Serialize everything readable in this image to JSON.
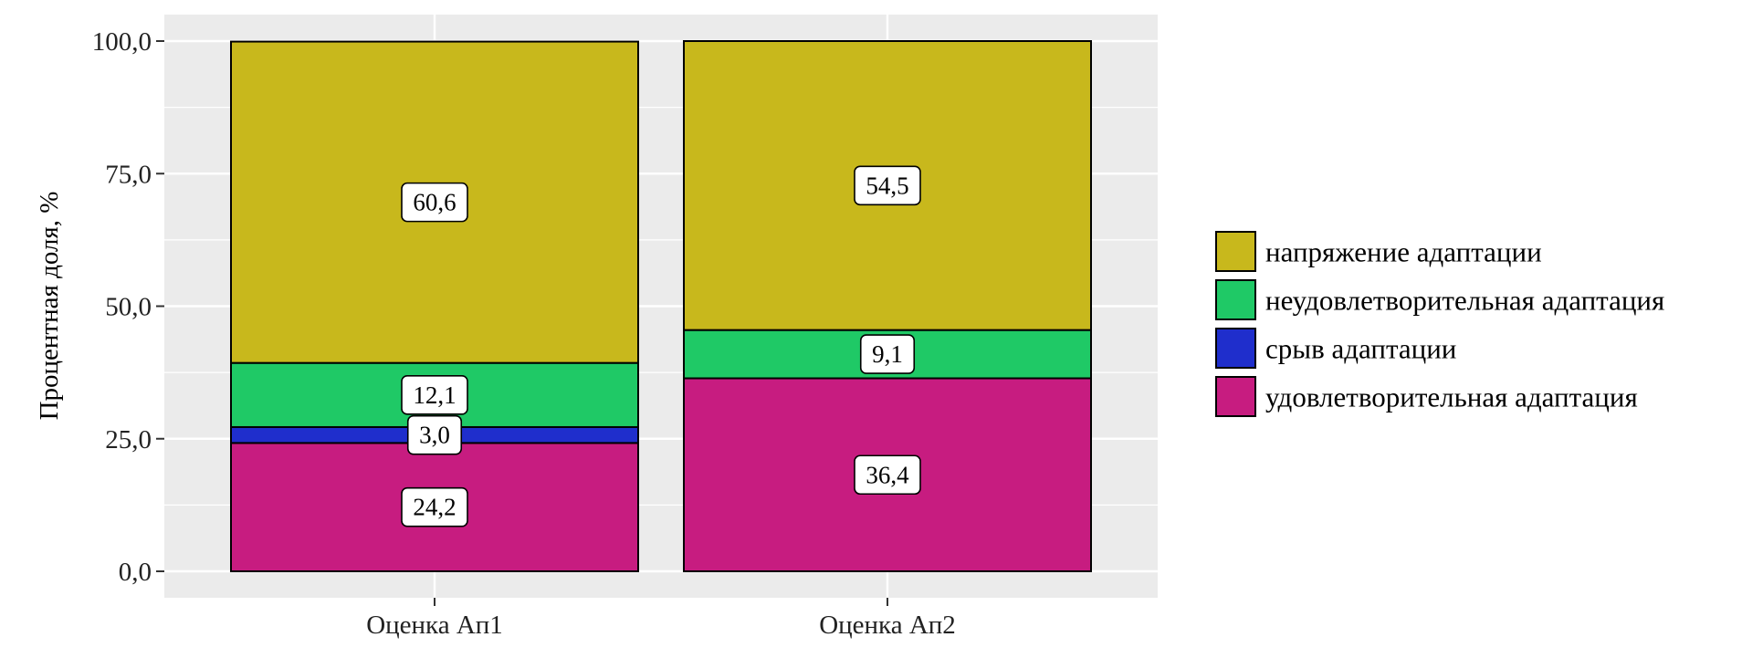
{
  "chart_data": {
    "type": "bar",
    "stacked": true,
    "categories": [
      "Оценка Ап1",
      "Оценка Ап2"
    ],
    "series": [
      {
        "name": "удовлетворительная адаптация",
        "color": "#C71C80",
        "values": [
          24.2,
          36.4
        ],
        "labels": [
          "24,2",
          "36,4"
        ]
      },
      {
        "name": "срыв адаптации",
        "color": "#1F2ECC",
        "values": [
          3.0,
          0
        ],
        "labels": [
          "3,0",
          ""
        ]
      },
      {
        "name": "неудовлетворительная адаптация",
        "color": "#1FC966",
        "values": [
          12.1,
          9.1
        ],
        "labels": [
          "12,1",
          "9,1"
        ]
      },
      {
        "name": "напряжение адаптации",
        "color": "#C8B81C",
        "values": [
          60.6,
          54.5
        ],
        "labels": [
          "60,6",
          "54,5"
        ]
      }
    ],
    "ylabel": "Процентная доля, %",
    "xlabel": "",
    "ylim": [
      0,
      100
    ],
    "yticks": [
      0,
      25,
      50,
      75,
      100
    ],
    "ytick_labels": [
      "0,0",
      "25,0",
      "50,0",
      "75,0",
      "100,0"
    ],
    "legend_order": [
      "напряжение адаптации",
      "неудовлетворительная адаптация",
      "срыв адаптации",
      "удовлетворительная адаптация"
    ],
    "legend_position": "right",
    "grid": true,
    "panel_color": "#EBEBEB"
  }
}
